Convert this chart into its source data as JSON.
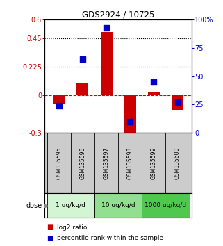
{
  "title": "GDS2924 / 10725",
  "samples": [
    "GSM135595",
    "GSM135596",
    "GSM135597",
    "GSM135598",
    "GSM135599",
    "GSM135600"
  ],
  "log2_ratio": [
    -0.07,
    0.1,
    0.5,
    -0.32,
    0.02,
    -0.12
  ],
  "percentile_rank": [
    24,
    65,
    93,
    10,
    45,
    27
  ],
  "ylim_left": [
    -0.3,
    0.6
  ],
  "ylim_right": [
    0,
    100
  ],
  "yticks_left": [
    -0.3,
    0.0,
    0.225,
    0.45,
    0.6
  ],
  "yticks_right": [
    0,
    25,
    50,
    75,
    100
  ],
  "ytick_labels_left": [
    "-0.3",
    "0",
    "0.225",
    "0.45",
    "0.6"
  ],
  "ytick_labels_right": [
    "0",
    "25",
    "50",
    "75",
    "100%"
  ],
  "hlines": [
    0.225,
    0.45
  ],
  "dose_groups": [
    {
      "label": "1 ug/kg/d",
      "color": "#d4f5d4",
      "start": 0,
      "end": 1
    },
    {
      "label": "10 ug/kg/d",
      "color": "#90e090",
      "start": 2,
      "end": 3
    },
    {
      "label": "1000 ug/kg/d",
      "color": "#50c850",
      "start": 4,
      "end": 5
    }
  ],
  "bar_color": "#cc0000",
  "dot_color": "#0000cc",
  "bar_width": 0.5,
  "dot_size": 28,
  "legend_red": "log2 ratio",
  "legend_blue": "percentile rank within the sample",
  "dose_label": "dose",
  "background_color": "#ffffff",
  "sample_bg_color": "#cccccc",
  "tick_label_color_left": "#cc0000",
  "tick_label_color_right": "#0000cc"
}
